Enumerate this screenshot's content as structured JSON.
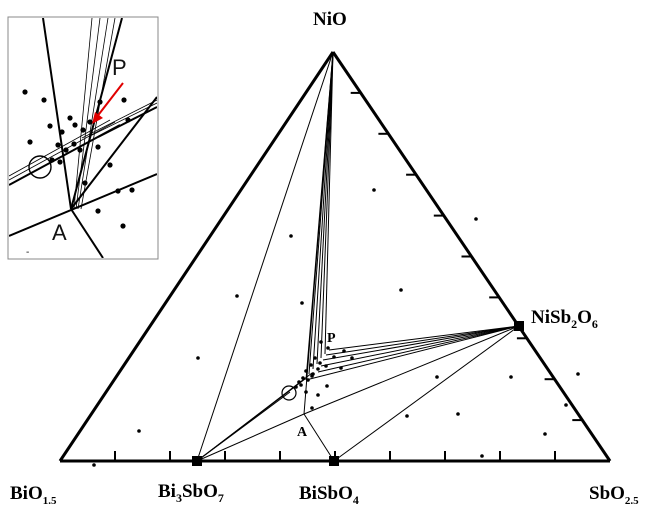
{
  "diagram": {
    "vertices": {
      "top": "NiO",
      "left": {
        "base": "BiO",
        "sub": "1.5"
      },
      "right": {
        "base": "SbO",
        "sub": "2.5"
      }
    },
    "compounds": {
      "bi3sbo7": {
        "parts": [
          [
            "Bi",
            ""
          ],
          [
            "3",
            "sub"
          ],
          [
            "SbO",
            ""
          ],
          [
            "7",
            "sub"
          ]
        ]
      },
      "bisbo4": {
        "parts": [
          [
            "BiSbO",
            ""
          ],
          [
            "4",
            "sub"
          ]
        ]
      },
      "nisb2o6": {
        "parts": [
          [
            "NiSb",
            ""
          ],
          [
            "2",
            "sub"
          ],
          [
            "O",
            ""
          ],
          [
            "6",
            "sub"
          ]
        ]
      }
    },
    "point_labels": {
      "P": "P",
      "A": "A"
    }
  },
  "inset": {
    "labels": {
      "P": "P",
      "A": "A"
    },
    "arrow_color": "#e00000"
  },
  "colors": {
    "lines": "#000000",
    "tie_lines": "#000000",
    "inset_border": "#888888"
  }
}
